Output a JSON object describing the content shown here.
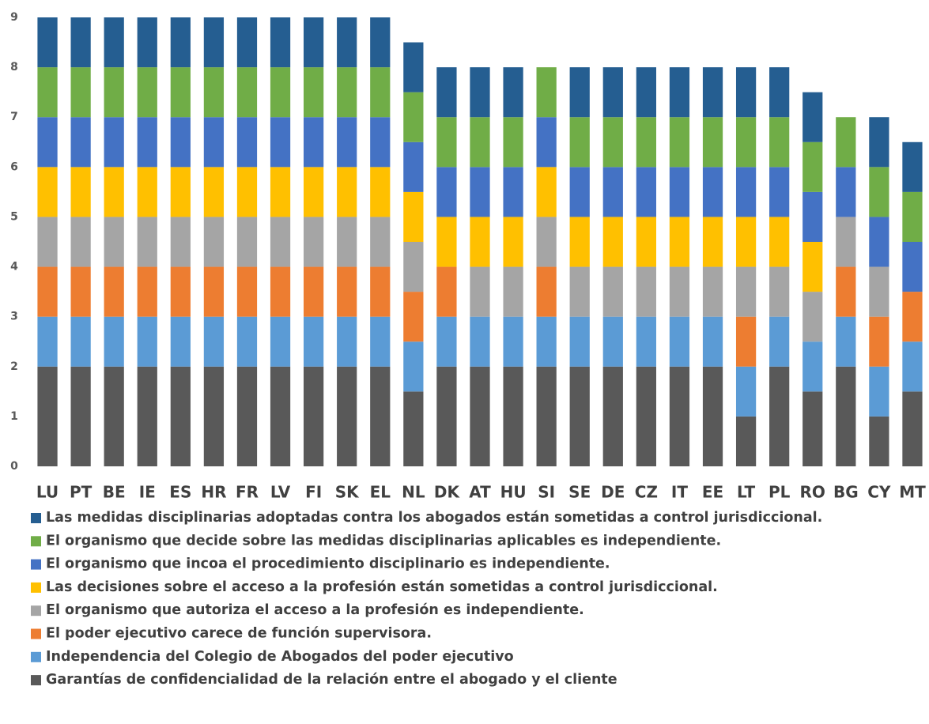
{
  "chart_data": {
    "type": "stacked_bar",
    "categories": [
      "LU",
      "PT",
      "BE",
      "IE",
      "ES",
      "HR",
      "FR",
      "LV",
      "FI",
      "SK",
      "EL",
      "NL",
      "DK",
      "AT",
      "HU",
      "SI",
      "SE",
      "DE",
      "CZ",
      "IT",
      "EE",
      "LT",
      "PL",
      "RO",
      "BG",
      "CY",
      "MT"
    ],
    "series": [
      {
        "name": "Garantías de confidencialidad de la relación entre el abogado y el cliente",
        "color": "#595959",
        "values": [
          2,
          2,
          2,
          2,
          2,
          2,
          2,
          2,
          2,
          2,
          2,
          1.5,
          2,
          2,
          2,
          2,
          2,
          2,
          2,
          2,
          2,
          1,
          2,
          1.5,
          2,
          1,
          1.5
        ]
      },
      {
        "name": "Independencia del Colegio de Abogados del poder ejecutivo",
        "color": "#5b9bd5",
        "values": [
          1,
          1,
          1,
          1,
          1,
          1,
          1,
          1,
          1,
          1,
          1,
          1,
          1,
          1,
          1,
          1,
          1,
          1,
          1,
          1,
          1,
          1,
          1,
          1,
          1,
          1,
          1
        ]
      },
      {
        "name": "El poder ejecutivo carece de función supervisora.",
        "color": "#ed7d31",
        "values": [
          1,
          1,
          1,
          1,
          1,
          1,
          1,
          1,
          1,
          1,
          1,
          1,
          1,
          0,
          0,
          1,
          0,
          0,
          0,
          0,
          0,
          1,
          0,
          0,
          1,
          1,
          1
        ]
      },
      {
        "name": "El organismo que autoriza el acceso a la profesión es independiente.",
        "color": "#a5a5a5",
        "values": [
          1,
          1,
          1,
          1,
          1,
          1,
          1,
          1,
          1,
          1,
          1,
          1,
          0,
          1,
          1,
          1,
          1,
          1,
          1,
          1,
          1,
          1,
          1,
          1,
          1,
          1,
          0
        ]
      },
      {
        "name": "Las decisiones sobre el acceso a la profesión están sometidas a control jurisdiccional.",
        "color": "#ffc000",
        "values": [
          1,
          1,
          1,
          1,
          1,
          1,
          1,
          1,
          1,
          1,
          1,
          1,
          1,
          1,
          1,
          1,
          1,
          1,
          1,
          1,
          1,
          1,
          1,
          1,
          0,
          0,
          0
        ]
      },
      {
        "name": "El organismo que incoa el procedimiento disciplinario es independiente.",
        "color": "#4472c4",
        "values": [
          1,
          1,
          1,
          1,
          1,
          1,
          1,
          1,
          1,
          1,
          1,
          1,
          1,
          1,
          1,
          1,
          1,
          1,
          1,
          1,
          1,
          1,
          1,
          1,
          1,
          1,
          1
        ]
      },
      {
        "name": "El organismo que decide sobre las medidas disciplinarias aplicables es independiente.",
        "color": "#70ad47",
        "values": [
          1,
          1,
          1,
          1,
          1,
          1,
          1,
          1,
          1,
          1,
          1,
          1,
          1,
          1,
          1,
          1,
          1,
          1,
          1,
          1,
          1,
          1,
          1,
          1,
          1,
          1,
          1
        ]
      },
      {
        "name": "Las medidas disciplinarias adoptadas contra los abogados están sometidas a control jurisdiccional.",
        "color": "#255e91",
        "values": [
          1,
          1,
          1,
          1,
          1,
          1,
          1,
          1,
          1,
          1,
          1,
          1,
          1,
          1,
          1,
          0,
          1,
          1,
          1,
          1,
          1,
          1,
          1,
          1,
          0,
          1,
          1
        ]
      }
    ],
    "ylim": [
      0,
      9
    ],
    "yticks": [
      0,
      1,
      2,
      3,
      4,
      5,
      6,
      7,
      8,
      9
    ],
    "grid": false
  }
}
